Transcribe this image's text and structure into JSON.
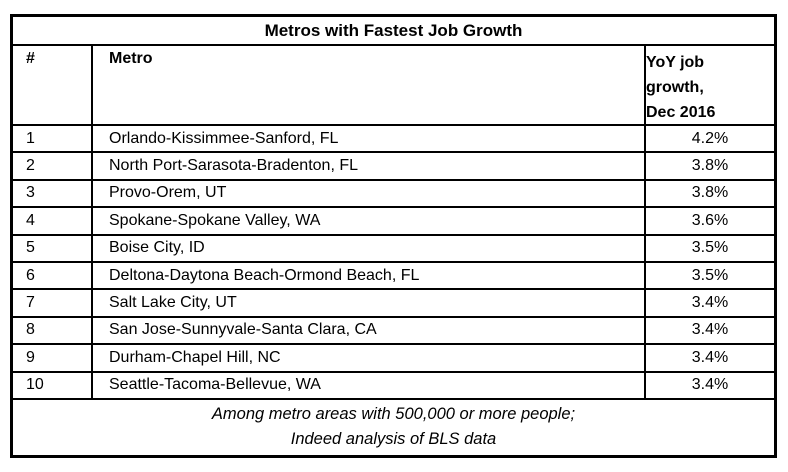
{
  "table": {
    "title": "Metros with Fastest Job Growth",
    "columns": {
      "rank": "#",
      "metro": "Metro",
      "growth": "YoY job growth, Dec 2016",
      "growth_lines": [
        "YoY job",
        "growth,",
        "Dec 2016"
      ]
    },
    "rows": [
      {
        "rank": "1",
        "metro": "Orlando-Kissimmee-Sanford, FL",
        "growth": "4.2%"
      },
      {
        "rank": "2",
        "metro": "North Port-Sarasota-Bradenton, FL",
        "growth": "3.8%"
      },
      {
        "rank": "3",
        "metro": "Provo-Orem, UT",
        "growth": "3.8%"
      },
      {
        "rank": "4",
        "metro": "Spokane-Spokane Valley, WA",
        "growth": "3.6%"
      },
      {
        "rank": "5",
        "metro": "Boise City, ID",
        "growth": "3.5%"
      },
      {
        "rank": "6",
        "metro": "Deltona-Daytona Beach-Ormond Beach, FL",
        "growth": "3.5%"
      },
      {
        "rank": "7",
        "metro": "Salt Lake City, UT",
        "growth": "3.4%"
      },
      {
        "rank": "8",
        "metro": "San Jose-Sunnyvale-Santa Clara, CA",
        "growth": "3.4%"
      },
      {
        "rank": "9",
        "metro": "Durham-Chapel Hill, NC",
        "growth": "3.4%"
      },
      {
        "rank": "10",
        "metro": "Seattle-Tacoma-Bellevue, WA",
        "growth": "3.4%"
      }
    ],
    "footnote": [
      "Among metro areas with 500,000 or more people;",
      "Indeed analysis of BLS data"
    ]
  },
  "colors": {
    "border": "#000000",
    "text": "#000000",
    "background": "#ffffff"
  },
  "chart_data": {
    "type": "table",
    "title": "Metros with Fastest Job Growth",
    "columns": [
      "#",
      "Metro",
      "YoY job growth, Dec 2016"
    ],
    "categories": [
      "Orlando-Kissimmee-Sanford, FL",
      "North Port-Sarasota-Bradenton, FL",
      "Provo-Orem, UT",
      "Spokane-Spokane Valley, WA",
      "Boise City, ID",
      "Deltona-Daytona Beach-Ormond Beach, FL",
      "Salt Lake City, UT",
      "San Jose-Sunnyvale-Santa Clara, CA",
      "Durham-Chapel Hill, NC",
      "Seattle-Tacoma-Bellevue, WA"
    ],
    "values": [
      4.2,
      3.8,
      3.8,
      3.6,
      3.5,
      3.5,
      3.4,
      3.4,
      3.4,
      3.4
    ],
    "value_unit": "%",
    "footnote": "Among metro areas with 500,000 or more people; Indeed analysis of BLS data"
  }
}
